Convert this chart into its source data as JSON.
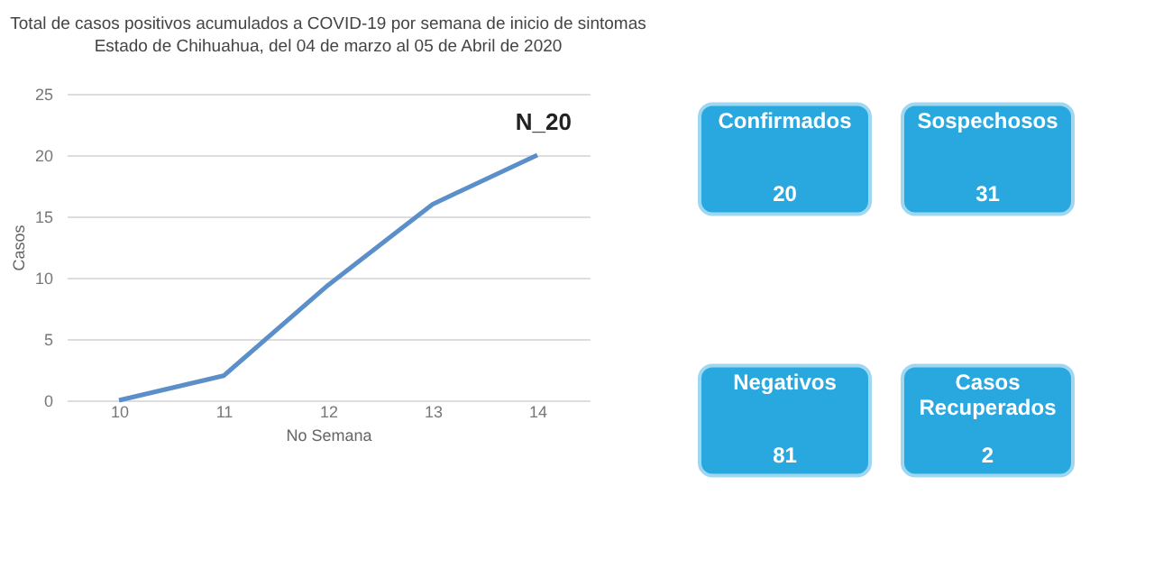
{
  "chart_data": [
    {
      "type": "line",
      "title": "Total de casos positivos acumulados a COVID-19 por semana de inicio de sintomas",
      "subtitle": "Estado de Chihuahua, del 04 de marzo al 05 de Abril de 2020",
      "xlabel": "No Semana",
      "ylabel": "Casos",
      "categories": [
        "10",
        "11",
        "12",
        "13",
        "14"
      ],
      "series": [
        {
          "color": "#5b8fc9",
          "values": [
            0,
            2,
            9.4,
            16,
            20
          ]
        }
      ],
      "ylim": [
        0,
        25
      ],
      "yticks": [
        0,
        5,
        10,
        15,
        20,
        25
      ],
      "grid": "y",
      "annotations": [
        "N_20"
      ]
    },
    {
      "type": "other",
      "categories": [
        "Confirmados",
        "Sospechosos",
        "Negativos",
        "Casos Recuperados"
      ],
      "values": [
        20,
        31,
        81,
        2
      ],
      "colors": [
        "#29a8e0",
        "#29a8e0",
        "#29a8e0",
        "#29a8e0"
      ],
      "data_labels": true
    }
  ]
}
